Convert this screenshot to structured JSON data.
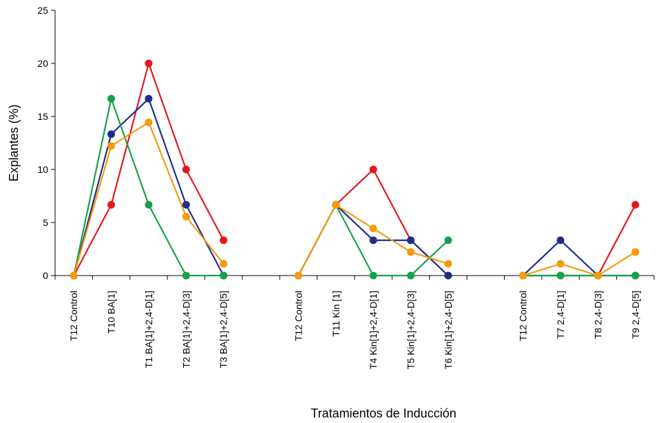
{
  "chart_data": {
    "type": "line",
    "title": "",
    "xlabel": "Tratamientos de Inducción",
    "ylabel": "Explantes (%)",
    "ylim": [
      0,
      25
    ],
    "yticks": [
      0,
      5,
      10,
      15,
      20,
      25
    ],
    "categories": [
      "T12 Control",
      "T10 BA[1]",
      "T1 BA[1]+2,4-D[1]",
      "T2 BA[1]+2,4-D[3]",
      "T3 BA[1]+2,4-D[5]",
      "",
      "T12 Control",
      "T11 Kin [1]",
      "T4 Kin[1]+2,4-D[1]",
      "T5 Kin[1]+2,4-D[3]",
      "T6 Kin[1]+2,4-D[5]",
      "",
      "T12 Control",
      "T7 2,4-D[1]",
      "T8 2,4-D[3]",
      "T9 2,4-D[5]"
    ],
    "grid": false,
    "legend": "none",
    "series": [
      {
        "color": "#e8141b",
        "values": [
          0,
          6.67,
          20,
          10,
          3.33,
          null,
          0,
          6.67,
          10,
          3.33,
          0,
          null,
          0,
          0,
          0,
          6.67
        ]
      },
      {
        "color": "#1e2d8c",
        "values": [
          0,
          13.33,
          16.67,
          6.67,
          0,
          null,
          0,
          6.67,
          3.33,
          3.33,
          0,
          null,
          0,
          3.33,
          0,
          0
        ]
      },
      {
        "color": "#13a24a",
        "values": [
          0,
          16.67,
          6.67,
          0,
          0,
          null,
          0,
          6.67,
          0,
          0,
          3.33,
          null,
          0,
          0,
          0,
          0
        ]
      },
      {
        "color": "#f59b0c",
        "values": [
          0,
          12.22,
          14.44,
          5.56,
          1.11,
          null,
          0,
          6.67,
          4.44,
          2.22,
          1.11,
          null,
          0,
          1.11,
          0,
          2.22
        ]
      }
    ]
  }
}
